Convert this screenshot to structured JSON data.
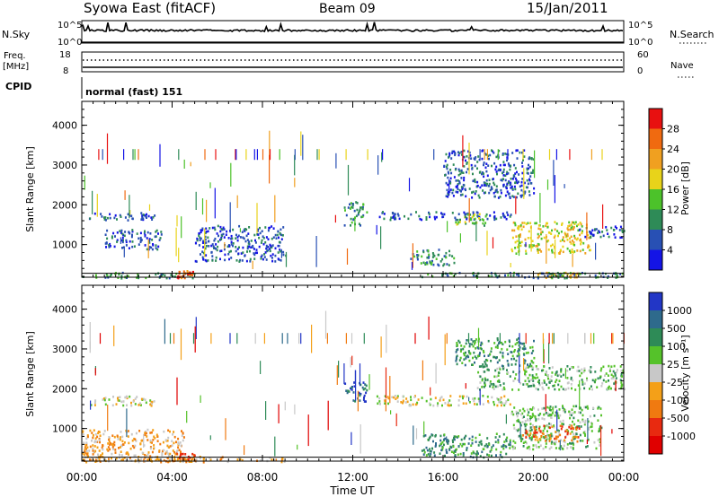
{
  "header": {
    "station": "Syowa East (fitACF)",
    "beam": "Beam 09",
    "date": "15/Jan/2011"
  },
  "noise_panel": {
    "left_label": "N.Sky",
    "right_label": "N.Search",
    "y_ticks": [
      "10^5",
      "10^0"
    ],
    "legend_style": "dotted"
  },
  "freq_panel": {
    "left_label_1": "Freq.",
    "left_label_2": "[MHz]",
    "left_ticks": [
      "18",
      "8"
    ],
    "right_label": "Nave",
    "right_ticks": [
      "60",
      "0"
    ],
    "legend_style": "dotted"
  },
  "cpid": {
    "label": "CPID",
    "value": "normal (fast) 151"
  },
  "x_axis": {
    "label": "Time UT",
    "ticks": [
      "00:00",
      "04:00",
      "08:00",
      "12:00",
      "16:00",
      "20:00",
      "00:00"
    ],
    "range_hours": [
      0,
      24
    ]
  },
  "chart_data": [
    {
      "type": "heatmap",
      "panel": "power",
      "ylabel": "Slant Range [km]",
      "y_ticks": [
        "1000",
        "2000",
        "3000",
        "4000"
      ],
      "ylim": [
        180,
        4600
      ],
      "colorbar_label": "Power [dB]",
      "colorbar_ticks": [
        "4",
        "8",
        "12",
        "16",
        "20",
        "24",
        "28"
      ],
      "colors": [
        "#1414e6",
        "#2850b4",
        "#2e8b57",
        "#4cc22a",
        "#e8d31a",
        "#f0a020",
        "#f06a10",
        "#e81010"
      ],
      "regions": [
        {
          "t": [
            0.3,
            3.2
          ],
          "r": [
            1620,
            1820
          ],
          "level": 1
        },
        {
          "t": [
            0.0,
            5.0
          ],
          "r": [
            180,
            320
          ],
          "level": 2
        },
        {
          "t": [
            4.2,
            4.9
          ],
          "r": [
            180,
            380
          ],
          "level": 6
        },
        {
          "t": [
            1.0,
            3.5
          ],
          "r": [
            900,
            1400
          ],
          "level": 1
        },
        {
          "t": [
            5.0,
            9.0
          ],
          "r": [
            600,
            1500
          ],
          "level": 1
        },
        {
          "t": [
            11.6,
            12.6
          ],
          "r": [
            1500,
            2100
          ],
          "level": 2
        },
        {
          "t": [
            13.0,
            19.0
          ],
          "r": [
            1650,
            1850
          ],
          "level": 1
        },
        {
          "t": [
            16.5,
            18.0
          ],
          "r": [
            1500,
            1800
          ],
          "level": 3
        },
        {
          "t": [
            19.0,
            22.5
          ],
          "r": [
            800,
            1600
          ],
          "level": 4
        },
        {
          "t": [
            20.0,
            22.0
          ],
          "r": [
            180,
            320
          ],
          "level": 5
        },
        {
          "t": [
            15.0,
            24.0
          ],
          "r": [
            180,
            320
          ],
          "level": 2
        },
        {
          "t": [
            14.5,
            16.5
          ],
          "r": [
            500,
            900
          ],
          "level": 2
        },
        {
          "t": [
            16.0,
            20.0
          ],
          "r": [
            2200,
            3400
          ],
          "level": 1
        },
        {
          "t": [
            22.0,
            24.0
          ],
          "r": [
            1200,
            1500
          ],
          "level": 1
        }
      ]
    },
    {
      "type": "heatmap",
      "panel": "velocity",
      "ylabel": "Slant Range [km]",
      "y_ticks": [
        "1000",
        "2000",
        "3000",
        "4000"
      ],
      "ylim": [
        180,
        4600
      ],
      "colorbar_label": "Velocity [m s⁻¹]",
      "colorbar_ticks": [
        "1000",
        "500",
        "100",
        "25",
        "-25",
        "-100",
        "-500",
        "-1000"
      ],
      "colors": [
        "#2236c6",
        "#2e6a8c",
        "#2e8b57",
        "#55c22a",
        "#c8c8c8",
        "#f4a018",
        "#f07a10",
        "#e82a10",
        "#e00000"
      ],
      "regions": [
        {
          "t": [
            0.3,
            3.2
          ],
          "r": [
            1600,
            1850
          ],
          "level": 4
        },
        {
          "t": [
            0.0,
            4.5
          ],
          "r": [
            180,
            1000
          ],
          "level": 5
        },
        {
          "t": [
            0.0,
            9.0
          ],
          "r": [
            180,
            320
          ],
          "level": 5
        },
        {
          "t": [
            4.0,
            5.0
          ],
          "r": [
            180,
            400
          ],
          "level": 6
        },
        {
          "t": [
            13.0,
            19.0
          ],
          "r": [
            1600,
            1850
          ],
          "level": 4
        },
        {
          "t": [
            11.6,
            12.6
          ],
          "r": [
            1700,
            2200
          ],
          "level": 1
        },
        {
          "t": [
            15.0,
            19.0
          ],
          "r": [
            300,
            900
          ],
          "level": 2
        },
        {
          "t": [
            19.0,
            23.0
          ],
          "r": [
            500,
            1600
          ],
          "level": 3
        },
        {
          "t": [
            19.5,
            22.0
          ],
          "r": [
            700,
            1100
          ],
          "level": 6
        },
        {
          "t": [
            17.5,
            24.0
          ],
          "r": [
            2000,
            2600
          ],
          "level": 3
        },
        {
          "t": [
            16.5,
            20.0
          ],
          "r": [
            2600,
            3300
          ],
          "level": 2
        }
      ]
    }
  ]
}
